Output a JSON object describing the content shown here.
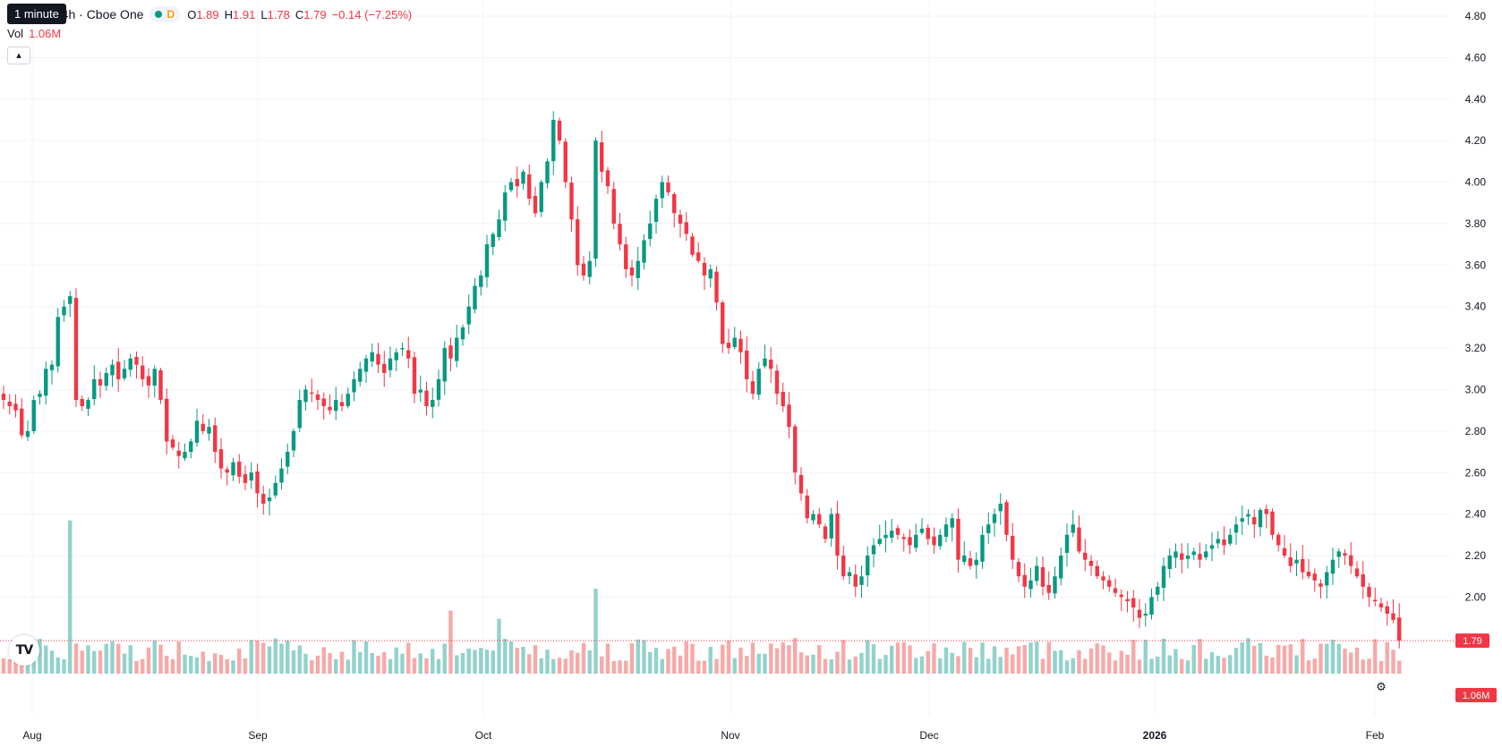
{
  "legend": {
    "title": "ital, Inc. · 4h · Cboe One",
    "dot_label": "D",
    "open_label": "O",
    "open": "1.89",
    "high_label": "H",
    "high": "1.91",
    "low_label": "L",
    "low": "1.78",
    "close_label": "C",
    "close": "1.79",
    "change": "−0.14 (−7.25%)"
  },
  "tooltip": "1 minute",
  "volume": {
    "label": "Vol",
    "value": "1.06M"
  },
  "price_badge": "1.79",
  "volume_badge": "1.06M",
  "colors": {
    "up": "#089981",
    "down": "#f23645",
    "up_vol": "#92d2cc",
    "down_vol": "#f7a9a7",
    "grid": "#f0f3fa"
  },
  "chart_data": {
    "type": "candlestick",
    "y_axis": {
      "ticks": [
        4.8,
        4.6,
        4.4,
        4.2,
        4.0,
        3.8,
        3.6,
        3.4,
        3.2,
        3.0,
        2.8,
        2.6,
        2.4,
        2.2,
        2.0
      ],
      "range": [
        1.7,
        4.8
      ]
    },
    "x_axis": {
      "labels": [
        "Aug",
        "Sep",
        "Oct",
        "Nov",
        "Dec",
        "2026",
        "Feb"
      ]
    },
    "last_price": 1.79,
    "last_volume": "1.06M",
    "closes": [
      2.95,
      2.92,
      2.9,
      2.78,
      2.8,
      2.95,
      2.98,
      3.1,
      3.12,
      3.35,
      3.4,
      3.45,
      2.95,
      2.92,
      2.95,
      3.05,
      3.02,
      3.08,
      3.12,
      3.05,
      3.1,
      3.15,
      3.12,
      3.05,
      3.02,
      3.1,
      2.95,
      2.75,
      2.72,
      2.68,
      2.7,
      2.75,
      2.85,
      2.8,
      2.82,
      2.7,
      2.62,
      2.6,
      2.65,
      2.58,
      2.55,
      2.6,
      2.5,
      2.45,
      2.48,
      2.55,
      2.62,
      2.7,
      2.8,
      2.95,
      3.0,
      2.98,
      2.95,
      2.92,
      2.9,
      2.95,
      2.92,
      2.98,
      3.05,
      3.1,
      3.15,
      3.18,
      3.12,
      3.08,
      3.15,
      3.18,
      3.2,
      3.15,
      2.98,
      3.0,
      2.92,
      2.95,
      3.05,
      3.2,
      3.15,
      3.25,
      3.3,
      3.4,
      3.5,
      3.55,
      3.7,
      3.75,
      3.82,
      3.95,
      4.0,
      3.98,
      4.05,
      3.92,
      3.85,
      4.0,
      4.1,
      4.3,
      4.2,
      4.0,
      3.82,
      3.6,
      3.55,
      3.62,
      4.2,
      4.05,
      3.98,
      3.8,
      3.7,
      3.58,
      3.55,
      3.62,
      3.72,
      3.8,
      3.92,
      4.0,
      3.95,
      3.85,
      3.8,
      3.75,
      3.65,
      3.62,
      3.55,
      3.58,
      3.42,
      3.22,
      3.2,
      3.25,
      3.18,
      3.05,
      2.98,
      3.1,
      3.15,
      3.1,
      2.98,
      2.92,
      2.82,
      2.6,
      2.5,
      2.38,
      2.4,
      2.35,
      2.28,
      2.4,
      2.2,
      2.1,
      2.12,
      2.05,
      2.1,
      2.2,
      2.25,
      2.28,
      2.3,
      2.32,
      2.3,
      2.28,
      2.25,
      2.3,
      2.33,
      2.28,
      2.25,
      2.3,
      2.35,
      2.38,
      2.18,
      2.2,
      2.15,
      2.18,
      2.3,
      2.35,
      2.4,
      2.45,
      2.3,
      2.18,
      2.1,
      2.05,
      2.08,
      2.15,
      2.05,
      2.02,
      2.1,
      2.2,
      2.3,
      2.35,
      2.22,
      2.18,
      2.15,
      2.1,
      2.08,
      2.05,
      2.02,
      2.0,
      1.98,
      1.95,
      1.9,
      1.92,
      2.0,
      2.05,
      2.15,
      2.2,
      2.22,
      2.18,
      2.2,
      2.22,
      2.18,
      2.22,
      2.25,
      2.28,
      2.25,
      2.3,
      2.35,
      2.38,
      2.4,
      2.35,
      2.42,
      2.4,
      2.3,
      2.25,
      2.2,
      2.15,
      2.18,
      2.12,
      2.1,
      2.08,
      2.05,
      2.12,
      2.18,
      2.22,
      2.2,
      2.15,
      2.1,
      2.05,
      2.0,
      1.98,
      1.95,
      1.92,
      1.89,
      1.79
    ]
  }
}
